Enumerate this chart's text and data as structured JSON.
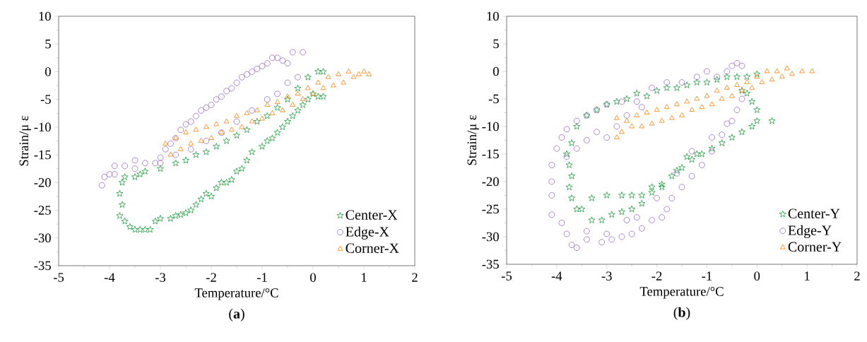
{
  "chart_data": [
    {
      "type": "scatter",
      "title": "(**a**)",
      "xlabel": "Temperature/°C",
      "ylabel": "Strain/μ ε",
      "xlim": [
        -5,
        2
      ],
      "ylim": [
        -35,
        10
      ],
      "xticks": [
        -5,
        -4,
        -3,
        -2,
        -1,
        0,
        1,
        2
      ],
      "yticks": [
        -35,
        -30,
        -25,
        -20,
        -15,
        -10,
        -5,
        0,
        5,
        10
      ],
      "legend": "bottom right",
      "grid": false,
      "series": [
        {
          "name": "Center-X",
          "color": "#1a9a3a",
          "marker": "star",
          "x": [
            -3.6,
            -3.5,
            -3.4,
            -3.3,
            -3.2,
            -3.1,
            -3,
            -2.8,
            -2.7,
            -2.6,
            -2.5,
            -2.4,
            -2.3,
            -2.2,
            -2.1,
            -2,
            -1.9,
            -1.8,
            -1.7,
            -1.6,
            -1.5,
            -1.4,
            -1.3,
            -1.2,
            -1,
            -0.9,
            -0.8,
            -0.7,
            -0.6,
            -0.5,
            -0.4,
            -0.3,
            -0.2,
            -0.1,
            0,
            0.1,
            0.2,
            -3.7,
            -3.8,
            -3.75,
            -3.8,
            -3.75,
            -3.7,
            -3.5,
            -3.4,
            -3.3,
            -3,
            -2.7,
            -2.5,
            -2.3,
            -2.1,
            -1.9,
            -1.7,
            -1.5,
            -1.3,
            -1.1,
            -0.9,
            -0.7,
            -0.5,
            -0.3,
            -0.1,
            0.1,
            0.2
          ],
          "values": [
            -28,
            -28.5,
            -28.5,
            -28.5,
            -28.5,
            -27,
            -26.5,
            -26.5,
            -26,
            -25.8,
            -25.5,
            -25,
            -24,
            -23,
            -22,
            -22.5,
            -21,
            -20,
            -20,
            -19.5,
            -18,
            -17.5,
            -16,
            -14.5,
            -13.5,
            -12.5,
            -12,
            -11,
            -10,
            -9,
            -8,
            -7,
            -6,
            -5,
            -4,
            -4.5,
            -4.5,
            -27,
            -26,
            -24,
            -22,
            -20,
            -19,
            -19,
            -18.5,
            -18,
            -17.5,
            -16.5,
            -16,
            -15,
            -14.5,
            -13.5,
            -12.5,
            -11.5,
            -10.5,
            -9,
            -8,
            -6.5,
            -5,
            -3,
            -1,
            0,
            0
          ]
        },
        {
          "name": "Edge-X",
          "color": "#9b6bc4",
          "marker": "circle",
          "x": [
            -4.15,
            -4.1,
            -4,
            -3.9,
            -3.7,
            -3.5,
            -3.3,
            -3.1,
            -3,
            -2.9,
            -2.8,
            -2.7,
            -2.6,
            -2.5,
            -2.4,
            -2.3,
            -2.2,
            -2.1,
            -2,
            -1.9,
            -1.8,
            -1.7,
            -1.6,
            -1.5,
            -1.4,
            -1.3,
            -1.2,
            -1.1,
            -1,
            -0.9,
            -0.8,
            -0.7,
            -0.6,
            -0.5,
            -0.4,
            -0.2,
            -0.3,
            -0.5,
            -0.7,
            -0.9,
            -1.2,
            -1.5,
            -1.8,
            -2.1,
            -2.4,
            -2.7,
            -3,
            -3.5,
            -3.9
          ],
          "values": [
            -20.5,
            -19,
            -18.5,
            -17,
            -17,
            -16,
            -16.5,
            -16.5,
            -15.5,
            -14,
            -13,
            -12,
            -10.5,
            -9.5,
            -9,
            -8,
            -7,
            -6.5,
            -6,
            -5,
            -4.5,
            -3.5,
            -3,
            -2,
            -1,
            -0.5,
            0,
            0.5,
            1,
            1.5,
            2.5,
            2.5,
            2,
            1.5,
            3.5,
            3.5,
            -1,
            -2,
            -4,
            -5,
            -7,
            -9,
            -11,
            -12.5,
            -14,
            -15,
            -16.5,
            -17.5,
            -18.5
          ]
        },
        {
          "name": "Corner-X",
          "color": "#ff7f00",
          "marker": "triangle",
          "x": [
            -2.9,
            -2.8,
            -2.7,
            -2.6,
            -2.5,
            -2.4,
            -2.3,
            -2.2,
            -2.1,
            -2,
            -1.9,
            -1.8,
            -1.7,
            -1.6,
            -1.5,
            -1.4,
            -1.3,
            -1.2,
            -1.1,
            -1,
            -0.9,
            -0.8,
            -0.7,
            -0.6,
            -0.5,
            -0.4,
            -0.3,
            -0.2,
            -0.1,
            0,
            0.1,
            0.2,
            0.3,
            0.4,
            0.5,
            0.6,
            0.7,
            0.8,
            0.9,
            1,
            1.1
          ],
          "values": [
            -13,
            -15,
            -12,
            -14,
            -11,
            -13,
            -10.5,
            -12.5,
            -10,
            -12,
            -9.5,
            -11,
            -9,
            -10.5,
            -8,
            -10,
            -7.5,
            -9,
            -7,
            -8.5,
            -6,
            -7.5,
            -5.5,
            -7,
            -4.5,
            -6,
            -4,
            -5,
            -3,
            -4,
            -2,
            -3,
            -1,
            -2.5,
            -0.5,
            -2,
            0,
            -1,
            -0.5,
            0,
            -0.5
          ]
        }
      ]
    },
    {
      "type": "scatter",
      "title": "(**b**)",
      "xlabel": "Temperature/°C",
      "ylabel": "Strain/μ ε",
      "xlim": [
        -5,
        2
      ],
      "ylim": [
        -35,
        10
      ],
      "xticks": [
        -5,
        -4,
        -3,
        -2,
        -1,
        0,
        1,
        2
      ],
      "yticks": [
        -35,
        -30,
        -25,
        -20,
        -15,
        -10,
        -5,
        0,
        5,
        10
      ],
      "legend": "bottom right",
      "grid": false,
      "series": [
        {
          "name": "Center-Y",
          "color": "#1a9a3a",
          "marker": "star",
          "x": [
            -3.5,
            -3.3,
            -3.1,
            -2.9,
            -2.7,
            -2.5,
            -2.3,
            -2.1,
            -1.9,
            -1.7,
            -1.5,
            -1.3,
            -1.1,
            -0.9,
            -0.7,
            -0.5,
            -0.3,
            -0.1,
            0,
            0.3,
            -3.3,
            -3,
            -2.7,
            -2.5,
            -2.3,
            -2.1,
            -1.9,
            -1.6,
            -1.4,
            -1.2,
            0,
            -0.1,
            -0.2,
            -0.3,
            -3.7,
            -3.6,
            -3.4,
            -3.2,
            -3,
            -2.8,
            -2.6,
            -2.4,
            -2.2,
            -2,
            -1.8,
            -1.6,
            -1.4,
            -1.2,
            -1,
            -0.8,
            -0.6,
            -0.4,
            -0.2,
            0,
            -3.8,
            -3.75,
            -3.7,
            -3.75,
            -3.7,
            -3.6
          ],
          "values": [
            -25,
            -27,
            -27,
            -26,
            -25.5,
            -25,
            -24,
            -22,
            -21,
            -19,
            -17.5,
            -16,
            -15,
            -14,
            -13,
            -12,
            -11,
            -10,
            -9,
            -9,
            -23,
            -22.5,
            -22.5,
            -22.5,
            -22.5,
            -21,
            -20.5,
            -18,
            -15.5,
            -15,
            -7,
            -5.5,
            -4,
            -3.5,
            -13,
            -10,
            -8,
            -7,
            -6,
            -5.5,
            -5,
            -4,
            -4.5,
            -3.5,
            -3,
            -3,
            -2.5,
            -2,
            -2,
            -1.5,
            -1,
            -1,
            -1,
            -0.5,
            -15,
            -17,
            -19,
            -21,
            -23,
            -25
          ]
        },
        {
          "name": "Edge-Y",
          "color": "#9b6bc4",
          "marker": "circle",
          "x": [
            -4.1,
            -4.1,
            -4.1,
            -3.9,
            -3.8,
            -3.7,
            -3.6,
            -3.4,
            -3.1,
            -2.9,
            -2.7,
            -2.5,
            -2.3,
            -2.1,
            -1.9,
            -1.8,
            -1.7,
            -1.5,
            -1.3,
            -1.1,
            -0.9,
            -0.7,
            -0.5,
            -0.4,
            -0.3,
            -3.4,
            -3,
            -2.6,
            -2.4,
            -2,
            -1.6,
            -1.3,
            -0.9,
            -0.6,
            -4.1,
            -4,
            -3.9,
            -3.8,
            -3.6,
            -3.4,
            -3.2,
            -3,
            -2.7,
            -2.4,
            -2.1,
            -1.8,
            -1.5,
            -1.2,
            -1,
            -0.8,
            -0.6,
            -0.5,
            -0.4,
            -0.3,
            -3.8,
            -3.6,
            -3.4,
            -3.2,
            -3,
            -2.8,
            -2.6,
            -2.3
          ],
          "values": [
            -20,
            -22.5,
            -26,
            -27.5,
            -29.5,
            -31.5,
            -32,
            -30.5,
            -31,
            -30.5,
            -30,
            -29.5,
            -28.5,
            -27,
            -26.5,
            -25,
            -23,
            -21,
            -19,
            -17,
            -14.5,
            -11.5,
            -9,
            -7,
            -5,
            -29,
            -29.5,
            -27,
            -26.5,
            -23,
            -18.5,
            -14.5,
            -12,
            -9.5,
            -17,
            -14,
            -12,
            -10.5,
            -9,
            -8,
            -7,
            -6,
            -5.5,
            -5.5,
            -3,
            -2,
            -2,
            -1,
            0,
            -1,
            0,
            1,
            1.5,
            1,
            -15.5,
            -14,
            -12.5,
            -11,
            -12,
            -10,
            -8,
            -6.5
          ]
        },
        {
          "name": "Corner-Y",
          "color": "#ff7f00",
          "marker": "triangle",
          "x": [
            -2.8,
            -2.8,
            -2.7,
            -2.6,
            -2.5,
            -2.4,
            -2.3,
            -2.2,
            -2.1,
            -2,
            -1.9,
            -1.8,
            -1.7,
            -1.6,
            -1.5,
            -1.4,
            -1.3,
            -1.2,
            -1.1,
            -1,
            -0.9,
            -0.8,
            -0.7,
            -0.6,
            -0.5,
            -0.4,
            -0.3,
            -0.2,
            -0.1,
            0,
            0.1,
            0.2,
            0.3,
            0.4,
            0.5,
            0.6,
            0.7,
            0.9,
            1.1
          ],
          "values": [
            -12,
            -8.5,
            -11,
            -9,
            -10,
            -8,
            -10,
            -7.5,
            -9.5,
            -7,
            -9,
            -6.5,
            -8.5,
            -6,
            -8,
            -5.5,
            -7,
            -5,
            -6.5,
            -4.5,
            -6,
            -3.5,
            -5,
            -3,
            -4.5,
            -2.5,
            -3.5,
            -2,
            -3,
            -1,
            -2,
            0,
            -1.5,
            0,
            -1,
            0.5,
            -0.5,
            0,
            0
          ]
        }
      ]
    }
  ]
}
